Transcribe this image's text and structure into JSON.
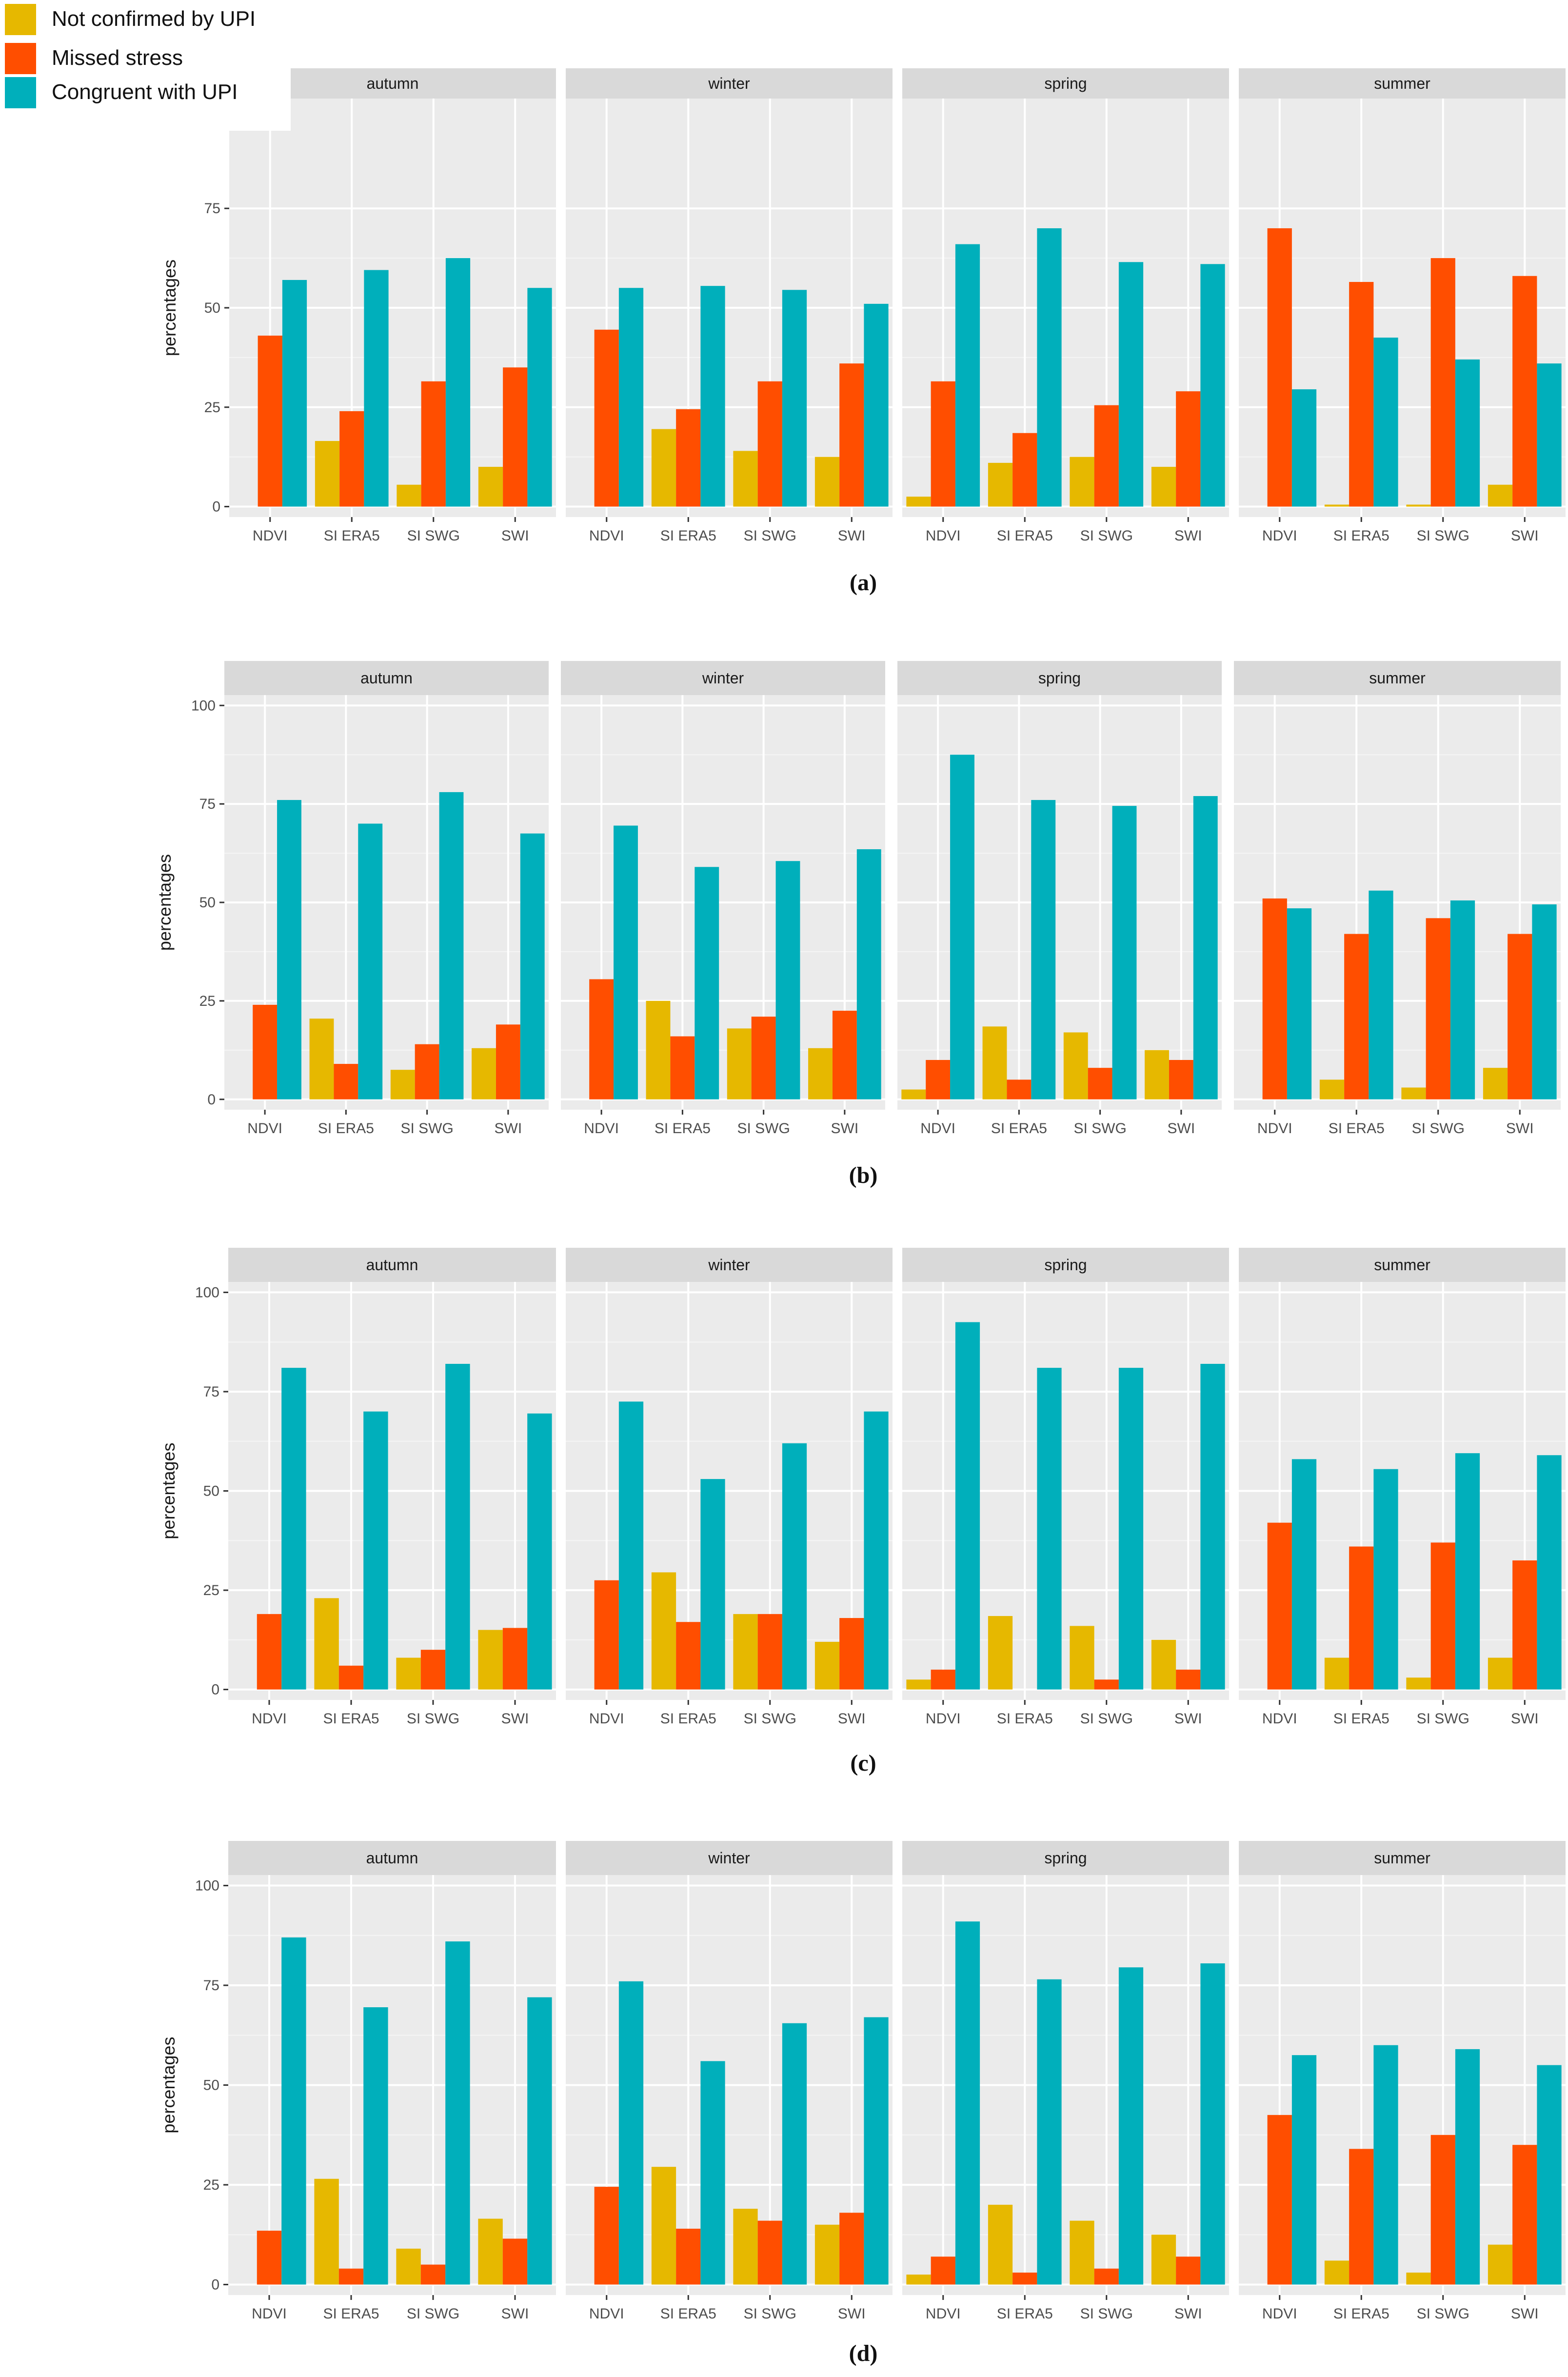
{
  "colors": {
    "not_confirmed": "#E6B800",
    "missed": "#FF4E00",
    "congruent": "#00AFBB",
    "panel_bg": "#EBEBEB",
    "strip_bg": "#D9D9D9",
    "grid": "#FFFFFF",
    "axis_text": "#4D4D4D"
  },
  "legend": [
    {
      "key": "not_confirmed",
      "label": "Not confirmed by UPI"
    },
    {
      "key": "missed",
      "label": "Missed stress"
    },
    {
      "key": "congruent",
      "label": "Congruent with UPI"
    }
  ],
  "chart_data": [
    {
      "type": "bar",
      "caption": "(a)",
      "ylabel": "percentages",
      "y_ticks": [
        0,
        25,
        50,
        75
      ],
      "ylim": [
        0,
        100
      ],
      "facets": [
        "autumn",
        "winter",
        "spring",
        "summer"
      ],
      "categories": [
        "NDVI",
        "SI ERA5",
        "SI SWG",
        "SWI"
      ],
      "series_names": [
        "Not confirmed by UPI",
        "Missed stress",
        "Congruent with UPI"
      ],
      "values": {
        "autumn": {
          "Not confirmed by UPI": [
            0,
            16.5,
            5.5,
            10
          ],
          "Missed stress": [
            43,
            24,
            31.5,
            35
          ],
          "Congruent with UPI": [
            57,
            59.5,
            62.5,
            55
          ]
        },
        "winter": {
          "Not confirmed by UPI": [
            0,
            19.5,
            14,
            12.5
          ],
          "Missed stress": [
            44.5,
            24.5,
            31.5,
            36
          ],
          "Congruent with UPI": [
            55,
            55.5,
            54.5,
            51
          ]
        },
        "spring": {
          "Not confirmed by UPI": [
            2.5,
            11,
            12.5,
            10
          ],
          "Missed stress": [
            31.5,
            18.5,
            25.5,
            29
          ],
          "Congruent with UPI": [
            66,
            70,
            61.5,
            61
          ]
        },
        "summer": {
          "Not confirmed by UPI": [
            0,
            0.5,
            0.5,
            5.5
          ],
          "Missed stress": [
            70,
            56.5,
            62.5,
            58
          ],
          "Congruent with UPI": [
            29.5,
            42.5,
            37,
            36
          ]
        }
      }
    },
    {
      "type": "bar",
      "caption": "(b)",
      "ylabel": "percentages",
      "y_ticks": [
        0,
        25,
        50,
        75,
        100
      ],
      "ylim": [
        0,
        100
      ],
      "facets": [
        "autumn",
        "winter",
        "spring",
        "summer"
      ],
      "categories": [
        "NDVI",
        "SI ERA5",
        "SI SWG",
        "SWI"
      ],
      "series_names": [
        "Not confirmed by UPI",
        "Missed stress",
        "Congruent with UPI"
      ],
      "values": {
        "autumn": {
          "Not confirmed by UPI": [
            0,
            20.5,
            7.5,
            13
          ],
          "Missed stress": [
            24,
            9,
            14,
            19
          ],
          "Congruent with UPI": [
            76,
            70,
            78,
            67.5
          ]
        },
        "winter": {
          "Not confirmed by UPI": [
            0,
            25,
            18,
            13
          ],
          "Missed stress": [
            30.5,
            16,
            21,
            22.5
          ],
          "Congruent with UPI": [
            69.5,
            59,
            60.5,
            63.5
          ]
        },
        "spring": {
          "Not confirmed by UPI": [
            2.5,
            18.5,
            17,
            12.5
          ],
          "Missed stress": [
            10,
            5,
            8,
            10
          ],
          "Congruent with UPI": [
            87.5,
            76,
            74.5,
            77
          ]
        },
        "summer": {
          "Not confirmed by UPI": [
            0,
            5,
            3,
            8
          ],
          "Missed stress": [
            51,
            42,
            46,
            42
          ],
          "Congruent with UPI": [
            48.5,
            53,
            50.5,
            49.5
          ]
        }
      }
    },
    {
      "type": "bar",
      "caption": "(c)",
      "ylabel": "percentages",
      "y_ticks": [
        0,
        25,
        50,
        75,
        100
      ],
      "ylim": [
        0,
        100
      ],
      "facets": [
        "autumn",
        "winter",
        "spring",
        "summer"
      ],
      "categories": [
        "NDVI",
        "SI ERA5",
        "SI SWG",
        "SWI"
      ],
      "series_names": [
        "Not confirmed by UPI",
        "Missed stress",
        "Congruent with UPI"
      ],
      "values": {
        "autumn": {
          "Not confirmed by UPI": [
            0,
            23,
            8,
            15
          ],
          "Missed stress": [
            19,
            6,
            10,
            15.5
          ],
          "Congruent with UPI": [
            81,
            70,
            82,
            69.5
          ]
        },
        "winter": {
          "Not confirmed by UPI": [
            0,
            29.5,
            19,
            12
          ],
          "Missed stress": [
            27.5,
            17,
            19,
            18
          ],
          "Congruent with UPI": [
            72.5,
            53,
            62,
            70
          ]
        },
        "spring": {
          "Not confirmed by UPI": [
            2.5,
            18.5,
            16,
            12.5
          ],
          "Missed stress": [
            5,
            0,
            2.5,
            5
          ],
          "Congruent with UPI": [
            92.5,
            81,
            81,
            82
          ]
        },
        "summer": {
          "Not confirmed by UPI": [
            0,
            8,
            3,
            8
          ],
          "Missed stress": [
            42,
            36,
            37,
            32.5
          ],
          "Congruent with UPI": [
            58,
            55.5,
            59.5,
            59
          ]
        }
      }
    },
    {
      "type": "bar",
      "caption": "(d)",
      "ylabel": "percentages",
      "y_ticks": [
        0,
        25,
        50,
        75,
        100
      ],
      "ylim": [
        0,
        100
      ],
      "facets": [
        "autumn",
        "winter",
        "spring",
        "summer"
      ],
      "categories": [
        "NDVI",
        "SI ERA5",
        "SI SWG",
        "SWI"
      ],
      "series_names": [
        "Not confirmed by UPI",
        "Missed stress",
        "Congruent with UPI"
      ],
      "values": {
        "autumn": {
          "Not confirmed by UPI": [
            0,
            26.5,
            9,
            16.5
          ],
          "Missed stress": [
            13.5,
            4,
            5,
            11.5
          ],
          "Congruent with UPI": [
            87,
            69.5,
            86,
            72
          ]
        },
        "winter": {
          "Not confirmed by UPI": [
            0,
            29.5,
            19,
            15
          ],
          "Missed stress": [
            24.5,
            14,
            16,
            18
          ],
          "Congruent with UPI": [
            76,
            56,
            65.5,
            67
          ]
        },
        "spring": {
          "Not confirmed by UPI": [
            2.5,
            20,
            16,
            12.5
          ],
          "Missed stress": [
            7,
            3,
            4,
            7
          ],
          "Congruent with UPI": [
            91,
            76.5,
            79.5,
            80.5
          ]
        },
        "summer": {
          "Not confirmed by UPI": [
            0,
            6,
            3,
            10
          ],
          "Missed stress": [
            42.5,
            34,
            37.5,
            35
          ],
          "Congruent with UPI": [
            57.5,
            60,
            59,
            55
          ]
        }
      }
    }
  ]
}
